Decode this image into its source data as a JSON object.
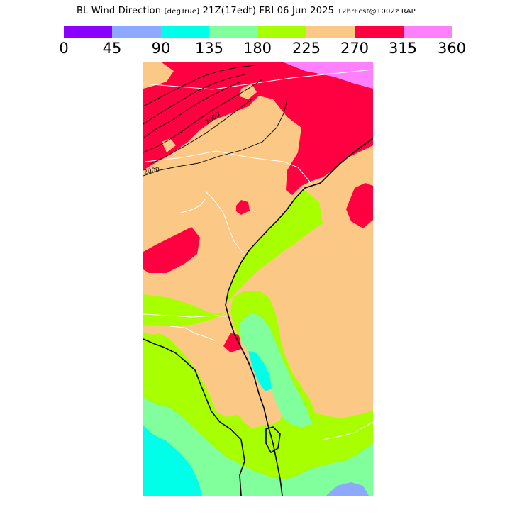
{
  "title": {
    "field": "BL Wind Direction",
    "units": "[degTrue]",
    "valid": "21Z(17edt) FRI 06 Jun 2025",
    "forecast": "12hrFcst@1002z RAP"
  },
  "colorbar": {
    "colors": [
      "#8c00ff",
      "#8ca8ff",
      "#00ffe8",
      "#80ff9c",
      "#a8ff00",
      "#fcc886",
      "#ff0040",
      "#ff80ff"
    ],
    "ticks": [
      "0",
      "45",
      "90",
      "135",
      "180",
      "225",
      "270",
      "315",
      "360"
    ]
  },
  "map": {
    "contour_labels": [
      "2000",
      "2000"
    ],
    "colors": {
      "tan": "#fcc886",
      "red": "#ff0040",
      "magenta": "#ff80ff",
      "lime": "#a8ff00",
      "green": "#80ff9c",
      "cyan": "#00ffe8",
      "blue": "#8ca8ff"
    }
  }
}
